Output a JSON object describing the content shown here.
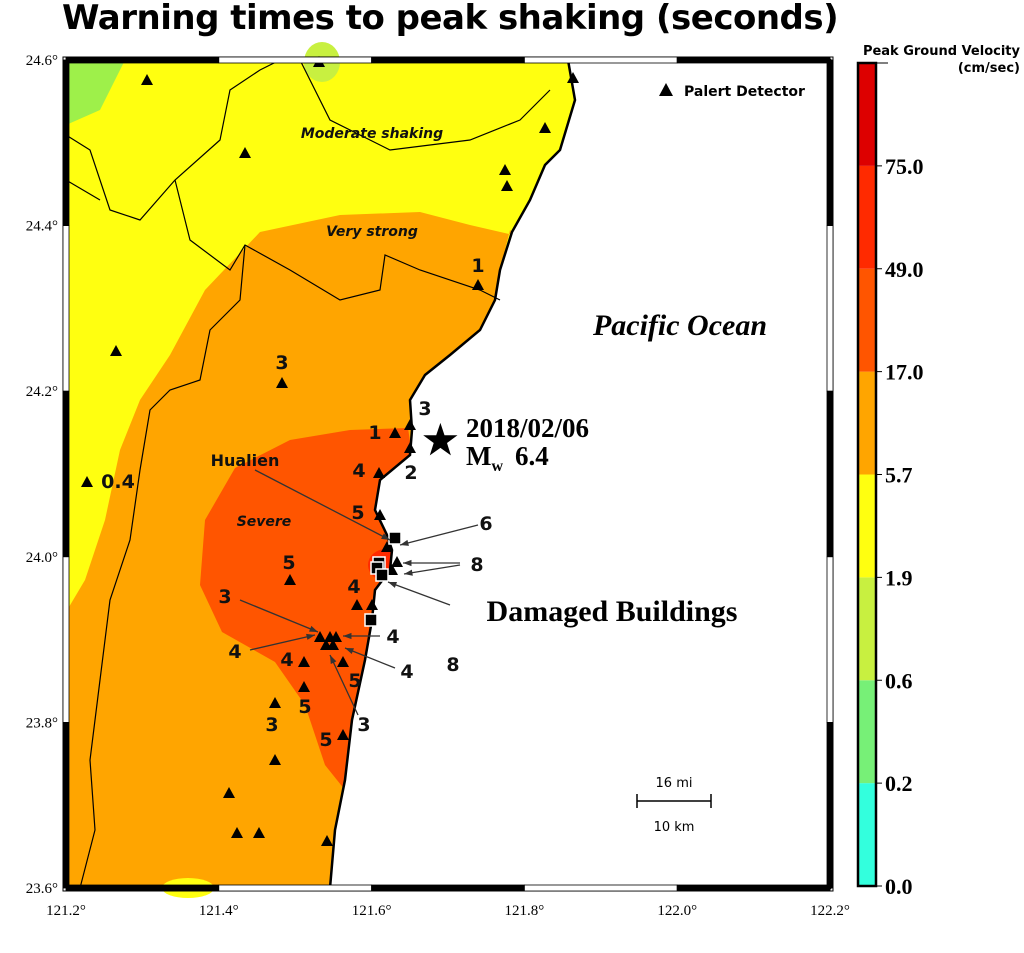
{
  "title": "Warning times to peak shaking (seconds)",
  "map": {
    "lon_ticks": [
      "121.2°",
      "121.4°",
      "121.6°",
      "121.8°",
      "122.0°",
      "122.2°"
    ],
    "lat_ticks": [
      "24.6°",
      "24.4°",
      "24.2°",
      "24.0°",
      "23.8°",
      "23.6°"
    ],
    "legend_detector": "Palert Detector",
    "zones": {
      "moderate": "Moderate shaking",
      "very_strong": "Very strong",
      "severe": "Severe"
    },
    "ocean": "Pacific Ocean",
    "event": {
      "date": "2018/02/06",
      "mag_prefix": "M",
      "mag_sub": "w",
      "magnitude": "6.4",
      "lon": 121.69,
      "lat": 24.14
    },
    "city": "Hualien",
    "damaged": "Damaged Buildings",
    "scale": {
      "top": "16 mi",
      "bottom": "10 km"
    },
    "warning_labels": [
      "1",
      "3",
      "0.4",
      "1",
      "3",
      "2",
      "4",
      "5",
      "6",
      "8",
      "5",
      "4",
      "3",
      "4",
      "4",
      "4",
      "4",
      "5",
      "5",
      "3",
      "3",
      "5",
      "8"
    ],
    "colors": {
      "ocean": "#ffffff",
      "moderate": "#ffff10",
      "very_strong": "#ffa500",
      "severe": "#ff5500",
      "extreme": "#ff2a00"
    }
  },
  "colorbar": {
    "title": "Peak Ground Velocity",
    "unit": "(cm/sec)",
    "ticks": [
      "0.0",
      "0.2",
      "0.6",
      "1.9",
      "5.7",
      "17.0",
      "49.0",
      "75.0"
    ],
    "colors": [
      "#33ffdd",
      "#77f077",
      "#c8f040",
      "#ffff10",
      "#ffa500",
      "#ff5500",
      "#ff2a00",
      "#dd0000"
    ]
  }
}
